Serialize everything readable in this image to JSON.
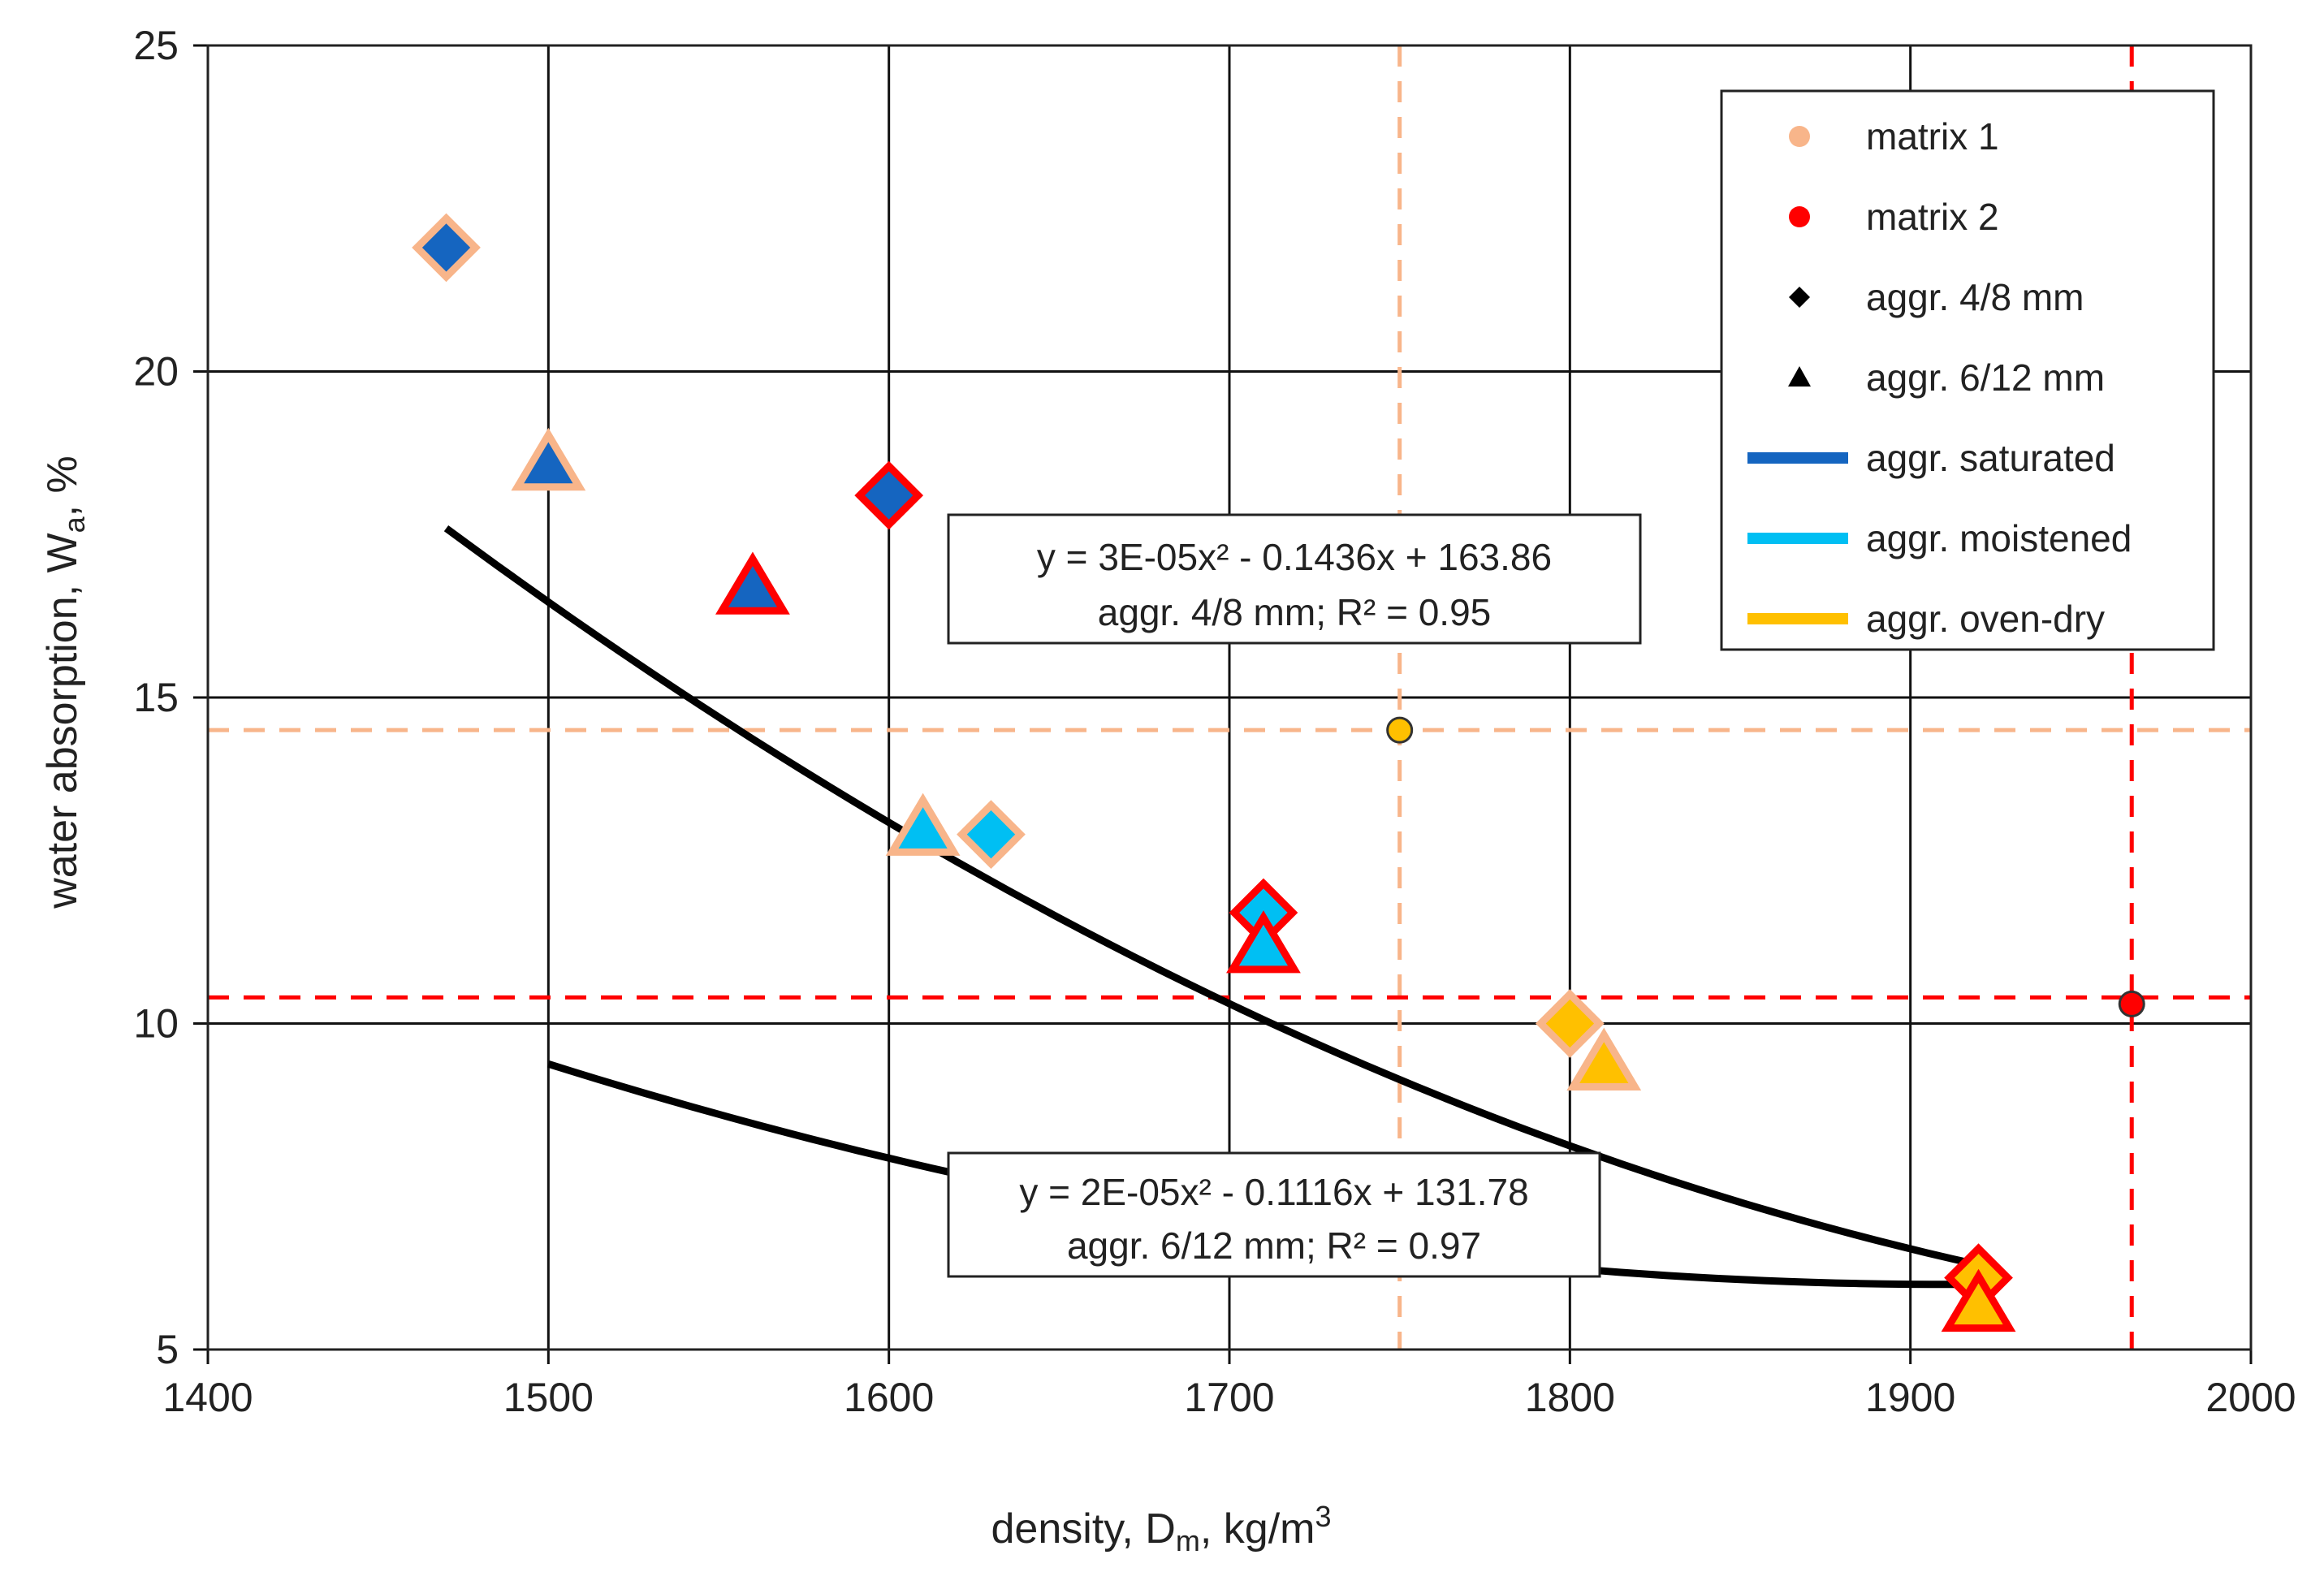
{
  "chart_data": {
    "type": "scatter",
    "xlabel": {
      "main": "density, D",
      "sub": "m",
      "tail": ", kg/m",
      "sup": "3"
    },
    "ylabel": {
      "main": "water absorption, W",
      "sub": "a",
      "tail": ", %"
    },
    "xlim": [
      1400,
      2000
    ],
    "ylim": [
      5,
      25
    ],
    "x_ticks": [
      "1400",
      "1500",
      "1600",
      "1700",
      "1800",
      "1900",
      "2000"
    ],
    "y_ticks": [
      "5",
      "10",
      "15",
      "20",
      "25"
    ],
    "grid": true,
    "legend_position": "top-right",
    "legend": [
      {
        "label": "matrix 1",
        "kind": "dot",
        "color": "#f8b58a"
      },
      {
        "label": "matrix 2",
        "kind": "dot",
        "color": "#ff0000"
      },
      {
        "label": "aggr. 4/8 mm",
        "kind": "diamond",
        "color": "#000000"
      },
      {
        "label": "aggr. 6/12 mm",
        "kind": "triangle",
        "color": "#000000"
      },
      {
        "label": "aggr. saturated",
        "kind": "line",
        "color": "#1565c0"
      },
      {
        "label": "aggr. moistened",
        "kind": "line",
        "color": "#00bff3"
      },
      {
        "label": "aggr. oven-dry",
        "kind": "line",
        "color": "#ffc000"
      }
    ],
    "colors": {
      "saturated": "#1565c0",
      "moistened": "#00bff3",
      "oven_dry": "#ffc000",
      "matrix1": "#f8b58a",
      "matrix2": "#ff0000"
    },
    "points": [
      {
        "x": 1470,
        "y": 21.9,
        "shape": "diamond",
        "fill": "saturated",
        "edge": "matrix1"
      },
      {
        "x": 1500,
        "y": 18.5,
        "shape": "triangle",
        "fill": "saturated",
        "edge": "matrix1"
      },
      {
        "x": 1560,
        "y": 16.6,
        "shape": "triangle",
        "fill": "saturated",
        "edge": "matrix2"
      },
      {
        "x": 1600,
        "y": 18.1,
        "shape": "diamond",
        "fill": "saturated",
        "edge": "matrix2"
      },
      {
        "x": 1610,
        "y": 12.9,
        "shape": "triangle",
        "fill": "moistened",
        "edge": "matrix1"
      },
      {
        "x": 1630,
        "y": 12.9,
        "shape": "diamond",
        "fill": "moistened",
        "edge": "matrix1"
      },
      {
        "x": 1710,
        "y": 11.7,
        "shape": "diamond",
        "fill": "moistened",
        "edge": "matrix2"
      },
      {
        "x": 1710,
        "y": 11.1,
        "shape": "triangle",
        "fill": "moistened",
        "edge": "matrix2"
      },
      {
        "x": 1800,
        "y": 10.0,
        "shape": "diamond",
        "fill": "oven_dry",
        "edge": "matrix1"
      },
      {
        "x": 1810,
        "y": 9.3,
        "shape": "triangle",
        "fill": "oven_dry",
        "edge": "matrix1"
      },
      {
        "x": 1920,
        "y": 6.1,
        "shape": "diamond",
        "fill": "oven_dry",
        "edge": "matrix2"
      },
      {
        "x": 1920,
        "y": 5.6,
        "shape": "triangle",
        "fill": "oven_dry",
        "edge": "matrix2"
      }
    ],
    "matrix_points": [
      {
        "x": 1750,
        "y": 14.5,
        "fill": "#ffc000"
      },
      {
        "x": 1965,
        "y": 10.3,
        "fill": "#ff0000"
      }
    ],
    "reference_lines": [
      {
        "orientation": "vertical",
        "value": 1750,
        "color": "#f8b58a"
      },
      {
        "orientation": "horizontal",
        "value": 14.5,
        "color": "#f8b58a"
      },
      {
        "orientation": "vertical",
        "value": 1965,
        "color": "#ff0000"
      },
      {
        "orientation": "horizontal",
        "value": 10.4,
        "color": "#ff0000"
      }
    ],
    "trendlines": [
      {
        "coeffs": [
          3e-05,
          -0.1436,
          163.86
        ],
        "x_range": [
          1470,
          1920
        ],
        "y_end": 6.3
      },
      {
        "coeffs": [
          2e-05,
          -0.1116,
          131.78
        ],
        "x_range": [
          1500,
          1920
        ],
        "y_end": 6.0
      }
    ],
    "annotations": [
      {
        "line1": "y = 3E-05x² - 0.1436x  + 163.86",
        "line2": "aggr. 4/8 mm; R² = 0.95"
      },
      {
        "line1": "y = 2E-05x² - 0.1116x  + 131.78",
        "line2": "aggr. 6/12 mm; R² = 0.97"
      }
    ]
  }
}
